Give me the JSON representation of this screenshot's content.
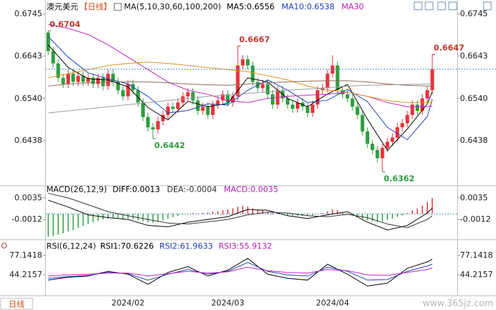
{
  "chart_data": [
    {
      "type": "candlestick",
      "title": "澳元美元",
      "period": "【日线】",
      "indicator": "MA(5,10,30,60,100,200)",
      "categories": [
        null,
        null,
        null,
        null,
        null,
        null,
        null,
        null,
        null,
        null,
        null,
        null,
        null,
        null,
        null,
        null,
        "2024/02",
        null,
        null,
        null,
        null,
        null,
        null,
        null,
        null,
        null,
        null,
        null,
        null,
        null,
        null,
        null,
        null,
        null,
        null,
        null,
        "2024/03",
        null,
        null,
        null,
        null,
        null,
        null,
        null,
        null,
        null,
        null,
        null,
        null,
        null,
        null,
        null,
        null,
        null,
        null,
        null,
        null,
        "2024/04",
        null,
        null,
        null,
        null,
        null,
        null,
        null,
        null,
        null,
        null,
        null,
        null,
        null,
        null,
        null,
        null,
        null,
        null,
        null,
        null
      ],
      "open": [
        0.67,
        0.6655,
        0.6625,
        0.659,
        0.6575,
        0.66,
        0.658,
        0.6595,
        0.658,
        0.659,
        0.6575,
        0.659,
        0.657,
        0.66,
        0.658,
        0.656,
        0.6545,
        0.6575,
        0.656,
        0.653,
        0.6495,
        0.647,
        0.6465,
        0.6485,
        0.65,
        0.652,
        0.6515,
        0.653,
        0.6545,
        0.6555,
        0.6535,
        0.651,
        0.652,
        0.65,
        0.6525,
        0.6535,
        0.655,
        0.653,
        0.6545,
        0.662,
        0.6635,
        0.662,
        0.658,
        0.6565,
        0.6575,
        0.655,
        0.6525,
        0.656,
        0.654,
        0.6525,
        0.6515,
        0.653,
        0.652,
        0.6505,
        0.6525,
        0.656,
        0.6565,
        0.66,
        0.662,
        0.656,
        0.655,
        0.654,
        0.652,
        0.65,
        0.646,
        0.643,
        0.6415,
        0.6395,
        0.642,
        0.6435,
        0.6445,
        0.647,
        0.648,
        0.65,
        0.6525,
        0.651,
        0.654,
        0.656
      ],
      "high": [
        0.6704,
        0.6665,
        0.6635,
        0.66,
        0.661,
        0.661,
        0.6605,
        0.6605,
        0.66,
        0.66,
        0.66,
        0.66,
        0.661,
        0.661,
        0.659,
        0.657,
        0.6585,
        0.6585,
        0.657,
        0.654,
        0.6505,
        0.648,
        0.6495,
        0.651,
        0.653,
        0.653,
        0.654,
        0.6555,
        0.6565,
        0.6565,
        0.6545,
        0.653,
        0.653,
        0.6535,
        0.6545,
        0.656,
        0.656,
        0.6555,
        0.6667,
        0.6645,
        0.6645,
        0.663,
        0.659,
        0.6585,
        0.6585,
        0.656,
        0.657,
        0.657,
        0.655,
        0.6535,
        0.654,
        0.654,
        0.653,
        0.6535,
        0.657,
        0.6575,
        0.661,
        0.6645,
        0.663,
        0.657,
        0.656,
        0.655,
        0.653,
        0.651,
        0.647,
        0.644,
        0.6425,
        0.643,
        0.6445,
        0.6455,
        0.648,
        0.649,
        0.651,
        0.6535,
        0.6535,
        0.655,
        0.657,
        0.6647
      ],
      "low": [
        0.6645,
        0.6615,
        0.658,
        0.6565,
        0.6565,
        0.657,
        0.657,
        0.657,
        0.657,
        0.6565,
        0.6565,
        0.656,
        0.656,
        0.657,
        0.655,
        0.6535,
        0.6535,
        0.655,
        0.652,
        0.6485,
        0.646,
        0.6442,
        0.6455,
        0.6475,
        0.649,
        0.6505,
        0.6505,
        0.652,
        0.6535,
        0.6525,
        0.65,
        0.65,
        0.649,
        0.649,
        0.6515,
        0.6525,
        0.652,
        0.652,
        0.6535,
        0.661,
        0.661,
        0.657,
        0.6555,
        0.6555,
        0.654,
        0.6515,
        0.6515,
        0.653,
        0.6515,
        0.6505,
        0.6505,
        0.651,
        0.6495,
        0.6495,
        0.6515,
        0.655,
        0.6555,
        0.659,
        0.655,
        0.654,
        0.653,
        0.651,
        0.649,
        0.645,
        0.642,
        0.6405,
        0.6385,
        0.6362,
        0.641,
        0.6425,
        0.6435,
        0.646,
        0.647,
        0.649,
        0.65,
        0.65,
        0.653,
        0.655
      ],
      "close": [
        0.6655,
        0.6625,
        0.659,
        0.6575,
        0.66,
        0.658,
        0.6595,
        0.658,
        0.659,
        0.6575,
        0.659,
        0.657,
        0.66,
        0.658,
        0.656,
        0.6545,
        0.6575,
        0.656,
        0.653,
        0.6495,
        0.647,
        0.6465,
        0.6485,
        0.65,
        0.652,
        0.6515,
        0.653,
        0.6545,
        0.6555,
        0.6535,
        0.651,
        0.652,
        0.65,
        0.6525,
        0.6535,
        0.655,
        0.653,
        0.6545,
        0.662,
        0.6635,
        0.662,
        0.658,
        0.6565,
        0.6575,
        0.655,
        0.6525,
        0.656,
        0.654,
        0.6525,
        0.6515,
        0.653,
        0.652,
        0.6505,
        0.6525,
        0.656,
        0.6565,
        0.66,
        0.662,
        0.656,
        0.655,
        0.654,
        0.652,
        0.65,
        0.646,
        0.643,
        0.6415,
        0.6395,
        0.642,
        0.6435,
        0.6445,
        0.647,
        0.648,
        0.65,
        0.6525,
        0.651,
        0.654,
        0.656,
        0.6611
      ],
      "up_color": "#e8333a",
      "down_color": "#2e9e3e",
      "ylim": [
        0.6329,
        0.6762
      ],
      "yticks": [
        0.6745,
        0.6643,
        {
          "value": 0.654,
          "label": "0.6540"
        },
        0.6438
      ],
      "last_price": 0.6611,
      "series": [
        {
          "legend": "MA5:0.6556",
          "color": "#000000",
          "x": [
            0,
            4,
            8,
            12,
            16,
            20,
            24,
            28,
            32,
            36,
            40,
            44,
            48,
            52,
            56,
            60,
            64,
            68,
            72,
            76,
            77
          ],
          "values": [
            0.667,
            0.6615,
            0.6588,
            0.6585,
            0.6568,
            0.6518,
            0.6488,
            0.6533,
            0.652,
            0.6528,
            0.659,
            0.658,
            0.654,
            0.652,
            0.6551,
            0.6574,
            0.649,
            0.6414,
            0.6466,
            0.6527,
            0.6556
          ]
        },
        {
          "legend": "MA10:0.6538",
          "color": "#1f3fbf",
          "x": [
            0,
            4,
            8,
            12,
            16,
            20,
            24,
            28,
            32,
            36,
            40,
            44,
            48,
            52,
            56,
            60,
            64,
            68,
            72,
            76,
            77
          ],
          "values": [
            0.669,
            0.664,
            0.6602,
            0.6588,
            0.6575,
            0.6545,
            0.6505,
            0.6511,
            0.6527,
            0.6524,
            0.656,
            0.6585,
            0.656,
            0.653,
            0.6536,
            0.6562,
            0.6532,
            0.647,
            0.644,
            0.6496,
            0.6538
          ]
        },
        {
          "legend": "MA30",
          "color": "#c020c0",
          "x": [
            0,
            4,
            8,
            12,
            16,
            20,
            24,
            28,
            32,
            36,
            40,
            44,
            48,
            52,
            56,
            60,
            64,
            68,
            72,
            76,
            77
          ],
          "values": [
            0.672,
            0.671,
            0.6695,
            0.667,
            0.664,
            0.661,
            0.658,
            0.656,
            0.655,
            0.6535,
            0.653,
            0.654,
            0.6545,
            0.6548,
            0.655,
            0.6555,
            0.6545,
            0.653,
            0.652,
            0.652,
            0.6522
          ]
        },
        {
          "color": "#e09020",
          "x": [
            0,
            4,
            8,
            12,
            16,
            20,
            24,
            28,
            32,
            36,
            40,
            44,
            48,
            52,
            56,
            60,
            64,
            68,
            72,
            76,
            77
          ],
          "values": [
            0.659,
            0.66,
            0.661,
            0.662,
            0.6625,
            0.6628,
            0.6625,
            0.662,
            0.6615,
            0.661,
            0.6605,
            0.6595,
            0.6585,
            0.657,
            0.656,
            0.6555,
            0.6545,
            0.6535,
            0.653,
            0.653,
            0.653
          ]
        },
        {
          "color": "#8a6a5a",
          "x": [
            0,
            4,
            8,
            12,
            16,
            20,
            24,
            28,
            32,
            36,
            40,
            44,
            48,
            52,
            56,
            60,
            64,
            68,
            72,
            76,
            77
          ],
          "values": [
            0.657,
            0.6575,
            0.6578,
            0.658,
            0.658,
            0.658,
            0.6578,
            0.6575,
            0.6573,
            0.6572,
            0.6575,
            0.6578,
            0.658,
            0.6582,
            0.6583,
            0.6583,
            0.658,
            0.6575,
            0.6572,
            0.657,
            0.657
          ]
        },
        {
          "color": "#9a9a9a",
          "x": [
            0,
            4,
            8,
            12,
            16,
            20,
            24,
            28,
            32,
            36,
            40,
            44,
            48,
            52,
            56,
            60,
            64,
            68,
            72,
            76,
            77
          ],
          "values": [
            0.6505,
            0.651,
            0.6515,
            0.652,
            0.6525,
            0.653,
            0.6535,
            0.654,
            0.6545,
            0.6548,
            0.6552,
            0.6556,
            0.656,
            0.6563,
            0.6566,
            0.657,
            0.6572,
            0.6573,
            0.6574,
            0.6575,
            0.6575
          ]
        }
      ],
      "annotations": [
        {
          "label": "0.6704",
          "x": 0,
          "value": 0.6704
        },
        {
          "label": "0.6442",
          "x": 21,
          "value": 0.6442
        },
        {
          "label": "0.6667",
          "x": 38,
          "value": 0.6667
        },
        {
          "label": "0.6362",
          "x": 67,
          "value": 0.6362
        },
        {
          "label": "0.6647",
          "x": 77,
          "value": 0.6647
        }
      ]
    },
    {
      "type": "macd",
      "title": "MACD(26,12,9)",
      "ylim": [
        -0.0054,
        0.0044
      ],
      "yticks": [
        0.0035,
        -0.0012
      ],
      "series": [
        {
          "legend": "DIFF:0.0013",
          "color": "#000000",
          "x": [
            0,
            4,
            8,
            12,
            16,
            20,
            24,
            28,
            32,
            36,
            40,
            44,
            48,
            52,
            56,
            60,
            64,
            68,
            72,
            76,
            77
          ],
          "values": [
            0.003,
            0.0015,
            -0.0002,
            -0.0008,
            -0.0012,
            -0.0025,
            -0.0028,
            -0.0018,
            -0.0012,
            -0.0006,
            0.001,
            0.0008,
            -0.0004,
            -0.001,
            -0.0002,
            0.0005,
            -0.0018,
            -0.0035,
            -0.0025,
            0.0002,
            0.0013
          ]
        },
        {
          "legend": "DEA:-0.0004",
          "color": "#333333",
          "x": [
            0,
            4,
            8,
            12,
            16,
            20,
            24,
            28,
            32,
            36,
            40,
            44,
            48,
            52,
            56,
            60,
            64,
            68,
            72,
            76,
            77
          ],
          "values": [
            0.0045,
            0.0035,
            0.002,
            0.0005,
            -0.0004,
            -0.0012,
            -0.002,
            -0.0022,
            -0.0017,
            -0.0012,
            -0.0002,
            0.0004,
            0.0002,
            -0.0004,
            -0.0006,
            -0.0001,
            -0.0008,
            -0.0022,
            -0.003,
            -0.0012,
            -0.0004
          ]
        }
      ],
      "histogram": {
        "legend": "MACD:0.0035",
        "color": "#c020c0",
        "up_color": "#e8333a",
        "down_color": "#2e9e3e",
        "values": [
          -0.005,
          -0.0048,
          -0.0045,
          -0.0042,
          -0.0038,
          -0.0035,
          -0.003,
          -0.0026,
          -0.0022,
          -0.0018,
          -0.0015,
          -0.0012,
          -0.001,
          -0.0009,
          -0.001,
          -0.0011,
          -0.001,
          -0.0011,
          -0.0013,
          -0.0016,
          -0.0018,
          -0.0019,
          -0.0017,
          -0.0014,
          -0.001,
          -0.0007,
          -0.0004,
          -0.0002,
          0.0001,
          0.0002,
          0.0001,
          0.0002,
          0.0003,
          0.0005,
          0.0006,
          0.0008,
          0.001,
          0.0012,
          0.0016,
          0.0018,
          0.0016,
          0.0012,
          0.0009,
          0.0008,
          0.0005,
          0.0002,
          0.0001,
          -0.0001,
          -0.0003,
          -0.0004,
          -0.0004,
          -0.0004,
          -0.0005,
          -0.0003,
          0.0,
          0.0002,
          0.0006,
          0.001,
          0.0008,
          0.0004,
          0.0001,
          -0.0002,
          -0.0006,
          -0.001,
          -0.0014,
          -0.0016,
          -0.0018,
          -0.0016,
          -0.0013,
          -0.001,
          -0.0006,
          -0.0003,
          0.0002,
          0.0008,
          0.0012,
          0.0018,
          0.0026,
          0.0035
        ]
      }
    },
    {
      "type": "rsi",
      "title": "RSI(6,12,24)",
      "ylim": [
        11.3,
        90.1
      ],
      "yticks": [
        77.1418,
        44.2157
      ],
      "series": [
        {
          "legend": "RSI1:70.6226",
          "color": "#000000",
          "x": [
            0,
            4,
            8,
            12,
            16,
            20,
            24,
            28,
            32,
            36,
            40,
            44,
            48,
            52,
            56,
            60,
            64,
            68,
            72,
            76,
            77
          ],
          "values": [
            35,
            40,
            42,
            50,
            45,
            28,
            48,
            58,
            42,
            52,
            72,
            45,
            38,
            35,
            62,
            45,
            25,
            30,
            55,
            66,
            70.6226
          ]
        },
        {
          "legend": "RSI2:61.9633",
          "color": "#1f3fbf",
          "x": [
            0,
            4,
            8,
            12,
            16,
            20,
            24,
            28,
            32,
            36,
            40,
            44,
            48,
            52,
            56,
            60,
            64,
            68,
            72,
            76,
            77
          ],
          "values": [
            38,
            41,
            43,
            48,
            46,
            35,
            45,
            53,
            45,
            50,
            65,
            50,
            44,
            42,
            57,
            50,
            35,
            36,
            50,
            59,
            61.9633
          ]
        },
        {
          "legend": "RSI3:55.9132",
          "color": "#c020c0",
          "x": [
            0,
            4,
            8,
            12,
            16,
            20,
            24,
            28,
            32,
            36,
            40,
            44,
            48,
            52,
            56,
            60,
            64,
            68,
            72,
            76,
            77
          ],
          "values": [
            42,
            44,
            45,
            47,
            47,
            42,
            46,
            50,
            47,
            49,
            57,
            51,
            48,
            47,
            53,
            51,
            44,
            43,
            48,
            53,
            55.9132
          ]
        }
      ]
    }
  ],
  "period_button": "日线",
  "watermark": "www.365jz.com"
}
